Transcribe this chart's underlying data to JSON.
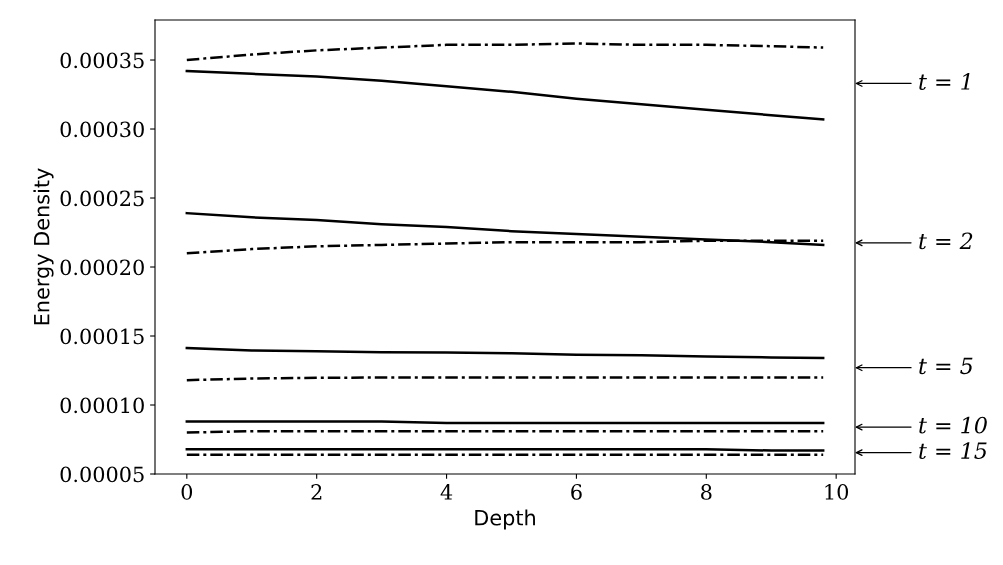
{
  "chart_data": {
    "type": "line",
    "xlabel": "Depth",
    "ylabel": "Energy Density",
    "x": [
      0,
      1,
      2,
      3,
      4,
      5,
      6,
      7,
      8,
      9,
      9.8
    ],
    "series": [
      {
        "color": "#000000",
        "line_style": "solid",
        "values": [
          0.000342,
          0.00034,
          0.000338,
          0.000335,
          0.000331,
          0.000327,
          0.000322,
          0.000318,
          0.000314,
          0.00031,
          0.000307
        ]
      },
      {
        "color": "#000000",
        "line_style": "dashdot",
        "values": [
          0.00035,
          0.000354,
          0.000357,
          0.000359,
          0.000361,
          0.000361,
          0.000362,
          0.000361,
          0.000361,
          0.00036,
          0.000359
        ]
      },
      {
        "color": "#000000",
        "line_style": "solid",
        "values": [
          0.000239,
          0.000236,
          0.000234,
          0.000231,
          0.000229,
          0.000226,
          0.000224,
          0.000222,
          0.00022,
          0.000218,
          0.000216
        ]
      },
      {
        "color": "#000000",
        "line_style": "dashdot",
        "values": [
          0.00021,
          0.000213,
          0.000215,
          0.000216,
          0.000217,
          0.000218,
          0.000218,
          0.000218,
          0.000219,
          0.000219,
          0.000219
        ]
      },
      {
        "color": "#000000",
        "line_style": "solid",
        "values": [
          0.0001413,
          0.0001395,
          0.000139,
          0.0001383,
          0.000138,
          0.0001375,
          0.0001365,
          0.000136,
          0.0001352,
          0.0001345,
          0.000134
        ]
      },
      {
        "color": "#000000",
        "line_style": "dashdot",
        "values": [
          0.000118,
          0.0001192,
          0.0001197,
          0.0001199,
          0.00012,
          0.00012,
          0.00012,
          0.00012,
          0.00012,
          0.00012,
          0.00012
        ]
      },
      {
        "color": "#000000",
        "line_style": "solid",
        "values": [
          8.8e-05,
          8.8e-05,
          8.8e-05,
          8.8e-05,
          8.7e-05,
          8.7e-05,
          8.7e-05,
          8.7e-05,
          8.7e-05,
          8.7e-05,
          8.7e-05
        ]
      },
      {
        "color": "#000000",
        "line_style": "dashdot",
        "values": [
          8e-05,
          8.1e-05,
          8.1e-05,
          8.1e-05,
          8.1e-05,
          8.1e-05,
          8.1e-05,
          8.1e-05,
          8.1e-05,
          8.1e-05,
          8.1e-05
        ]
      },
      {
        "color": "#000000",
        "line_style": "solid",
        "values": [
          6.8e-05,
          6.8e-05,
          6.8e-05,
          6.8e-05,
          6.8e-05,
          6.8e-05,
          6.8e-05,
          6.8e-05,
          6.8e-05,
          6.7e-05,
          6.7e-05
        ]
      },
      {
        "color": "#000000",
        "line_style": "dashdot",
        "values": [
          6.4e-05,
          6.4e-05,
          6.4e-05,
          6.4e-05,
          6.4e-05,
          6.4e-05,
          6.4e-05,
          6.4e-05,
          6.4e-05,
          6.4e-05,
          6.4e-05
        ]
      }
    ],
    "xlim": [
      -0.49,
      10.29
    ],
    "xticks": [
      0,
      2,
      4,
      6,
      8,
      10
    ],
    "ylim": [
      5e-05,
      0.000379
    ],
    "yticks": [
      {
        "value": 5e-05,
        "label": "0.00005"
      },
      {
        "value": 0.0001,
        "label": "0.00010"
      },
      {
        "value": 0.00015,
        "label": "0.00015"
      },
      {
        "value": 0.0002,
        "label": "0.00020"
      },
      {
        "value": 0.00025,
        "label": "0.00025"
      },
      {
        "value": 0.0003,
        "label": "0.00030"
      },
      {
        "value": 0.00035,
        "label": "0.00035"
      }
    ],
    "grid": false,
    "legend": false,
    "marker": "none",
    "annotations": [
      "t = 1",
      "t = 2",
      "t = 5",
      "t = 10",
      "t = 15"
    ]
  }
}
